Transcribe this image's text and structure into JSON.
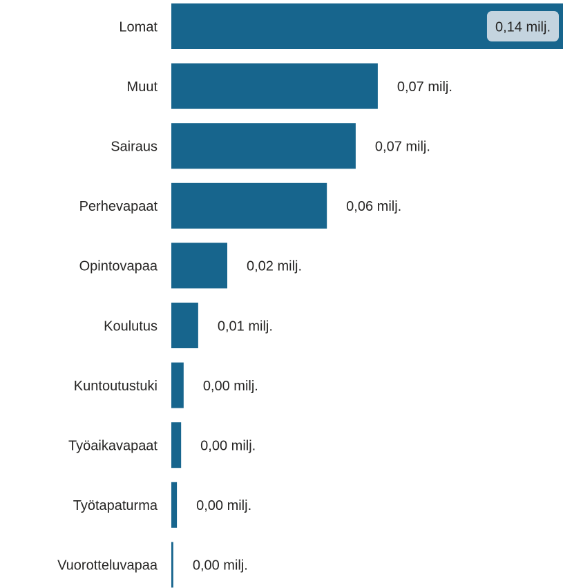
{
  "chart_data": {
    "type": "bar",
    "orientation": "horizontal",
    "categories": [
      "Lomat",
      "Muut",
      "Sairaus",
      "Perhevapaat",
      "Opintovapaa",
      "Koulutus",
      "Kuntoutustuki",
      "Työaikavapaat",
      "Työtapaturma",
      "Vuorotteluvapaa"
    ],
    "values": [
      0.14,
      0.0738,
      0.0659,
      0.0556,
      0.02,
      0.0096,
      0.0044,
      0.0035,
      0.002,
      0.0007
    ],
    "value_labels": [
      "0,14 milj.",
      "0,07 milj.",
      "0,07 milj.",
      "0,06 milj.",
      "0,02 milj.",
      "0,01 milj.",
      "0,00 milj.",
      "0,00 milj.",
      "0,00 milj.",
      "0,00 milj."
    ],
    "color": "#17658d"
  }
}
